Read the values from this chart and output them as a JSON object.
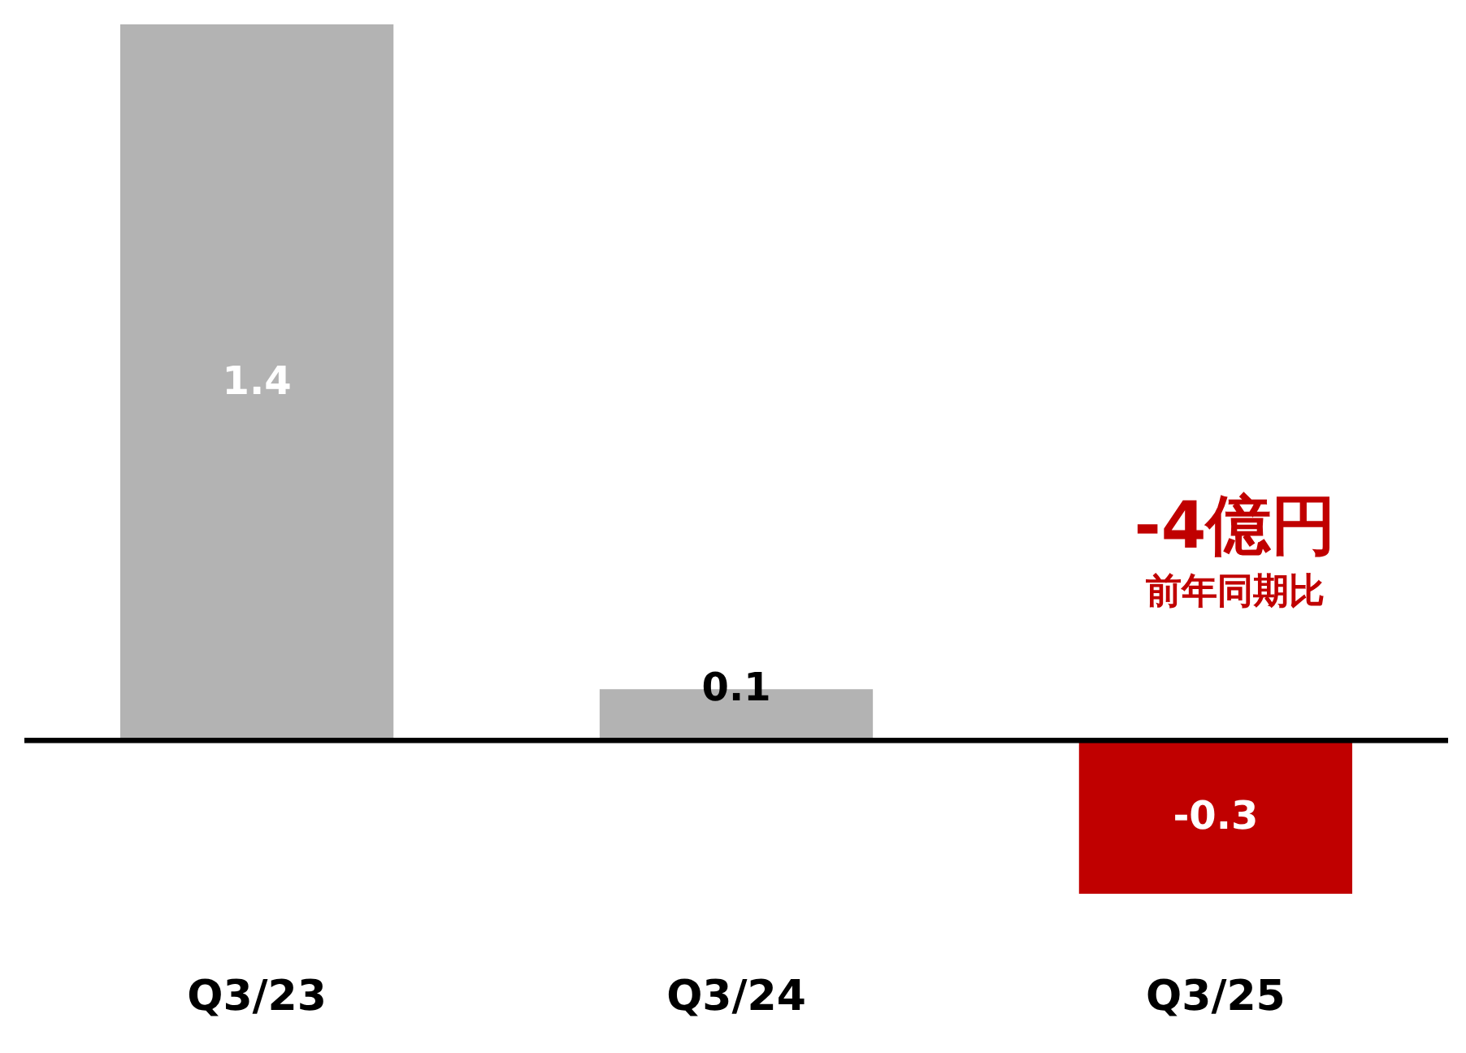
{
  "chart_data": {
    "type": "bar",
    "categories": [
      "Q3/23",
      "Q3/24",
      "Q3/25"
    ],
    "values": [
      1.4,
      0.1,
      -0.3
    ],
    "colors": [
      "#b3b3b3",
      "#b3b3b3",
      "#c00000"
    ],
    "data_labels": true,
    "annotations": [
      "-4億円",
      "前年同期比"
    ]
  }
}
